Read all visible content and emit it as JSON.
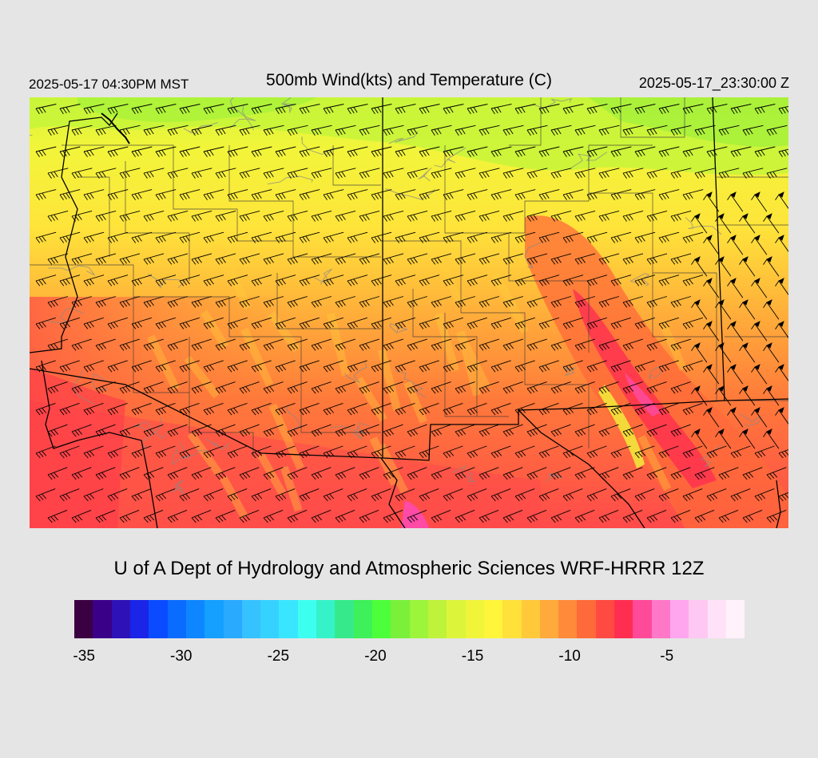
{
  "header": {
    "local_time": "2025-05-17 04:30PM MST",
    "title": "500mb Wind(kts) and Temperature (C)",
    "utc_time": "2025-05-17_23:30:00 Z"
  },
  "credit": "U of A Dept of Hydrology and Atmospheric Sciences WRF-HRRR 12Z",
  "colorbar": {
    "colors": [
      "#3b0042",
      "#3a0088",
      "#2e12b8",
      "#1a25e8",
      "#0a4bff",
      "#0a6cff",
      "#0d86ff",
      "#15a0ff",
      "#2aaaff",
      "#36c2ff",
      "#36d2ff",
      "#3ae6ff",
      "#3dfff0",
      "#36f2c8",
      "#36ea8c",
      "#3ef05a",
      "#4dff3a",
      "#7af03a",
      "#9cf53a",
      "#bff23a",
      "#dcf53a",
      "#f0f53a",
      "#fff53a",
      "#ffe13a",
      "#ffc93a",
      "#ffaa3a",
      "#ff8a3a",
      "#ff6a3a",
      "#ff4a42",
      "#ff2e50",
      "#ff4a9a",
      "#ff78c8",
      "#ffa6ee",
      "#ffc8f2",
      "#ffe2f7",
      "#fff2fa"
    ],
    "tick_labels": [
      "-35",
      "-30",
      "-25",
      "-20",
      "-15",
      "-10",
      "-5"
    ],
    "tick_values": [
      -35,
      -30,
      -25,
      -20,
      -15,
      -10,
      -5
    ],
    "min": -35.5,
    "max": -1
  },
  "map": {
    "field": "500mb temperature with wind barbs",
    "contour_color": "#888888",
    "border_color": "#000000",
    "barb_color": "#000000"
  }
}
